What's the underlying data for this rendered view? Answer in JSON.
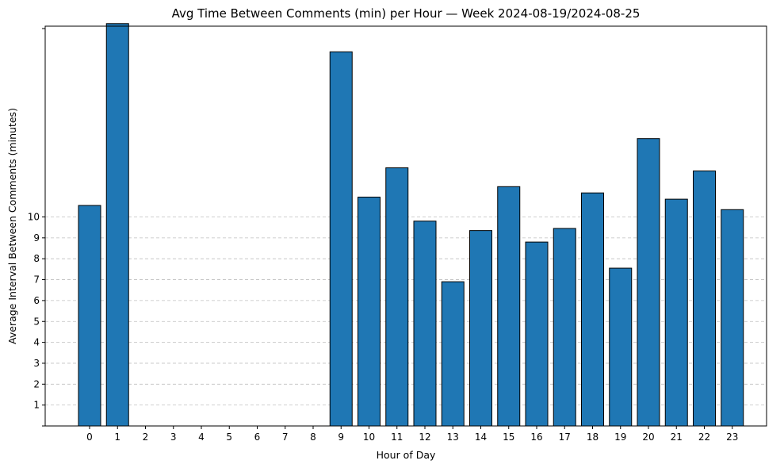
{
  "chart_data": {
    "type": "bar",
    "title": "Avg Time Between Comments (min) per Hour — Week 2024-08-19/2024-08-25",
    "xlabel": "Hour of Day",
    "ylabel": "Average Interval Between Comments (minutes)",
    "categories": [
      "0",
      "1",
      "2",
      "3",
      "4",
      "5",
      "6",
      "7",
      "8",
      "9",
      "10",
      "11",
      "12",
      "13",
      "14",
      "15",
      "16",
      "17",
      "18",
      "19",
      "20",
      "21",
      "22",
      "23"
    ],
    "values": [
      10.55,
      19.25,
      0,
      0,
      0,
      0,
      0,
      0,
      0,
      17.9,
      10.95,
      12.35,
      9.8,
      6.9,
      9.35,
      11.45,
      8.8,
      9.45,
      11.15,
      7.55,
      13.75,
      10.85,
      12.2,
      10.35
    ],
    "yticks": [
      1,
      2,
      3,
      4,
      5,
      6,
      7,
      8,
      9,
      10
    ],
    "ylim": [
      0,
      19.1
    ],
    "grid": "y-dashed",
    "bar_color": "#1f77b4",
    "edge_color": "#000000"
  }
}
